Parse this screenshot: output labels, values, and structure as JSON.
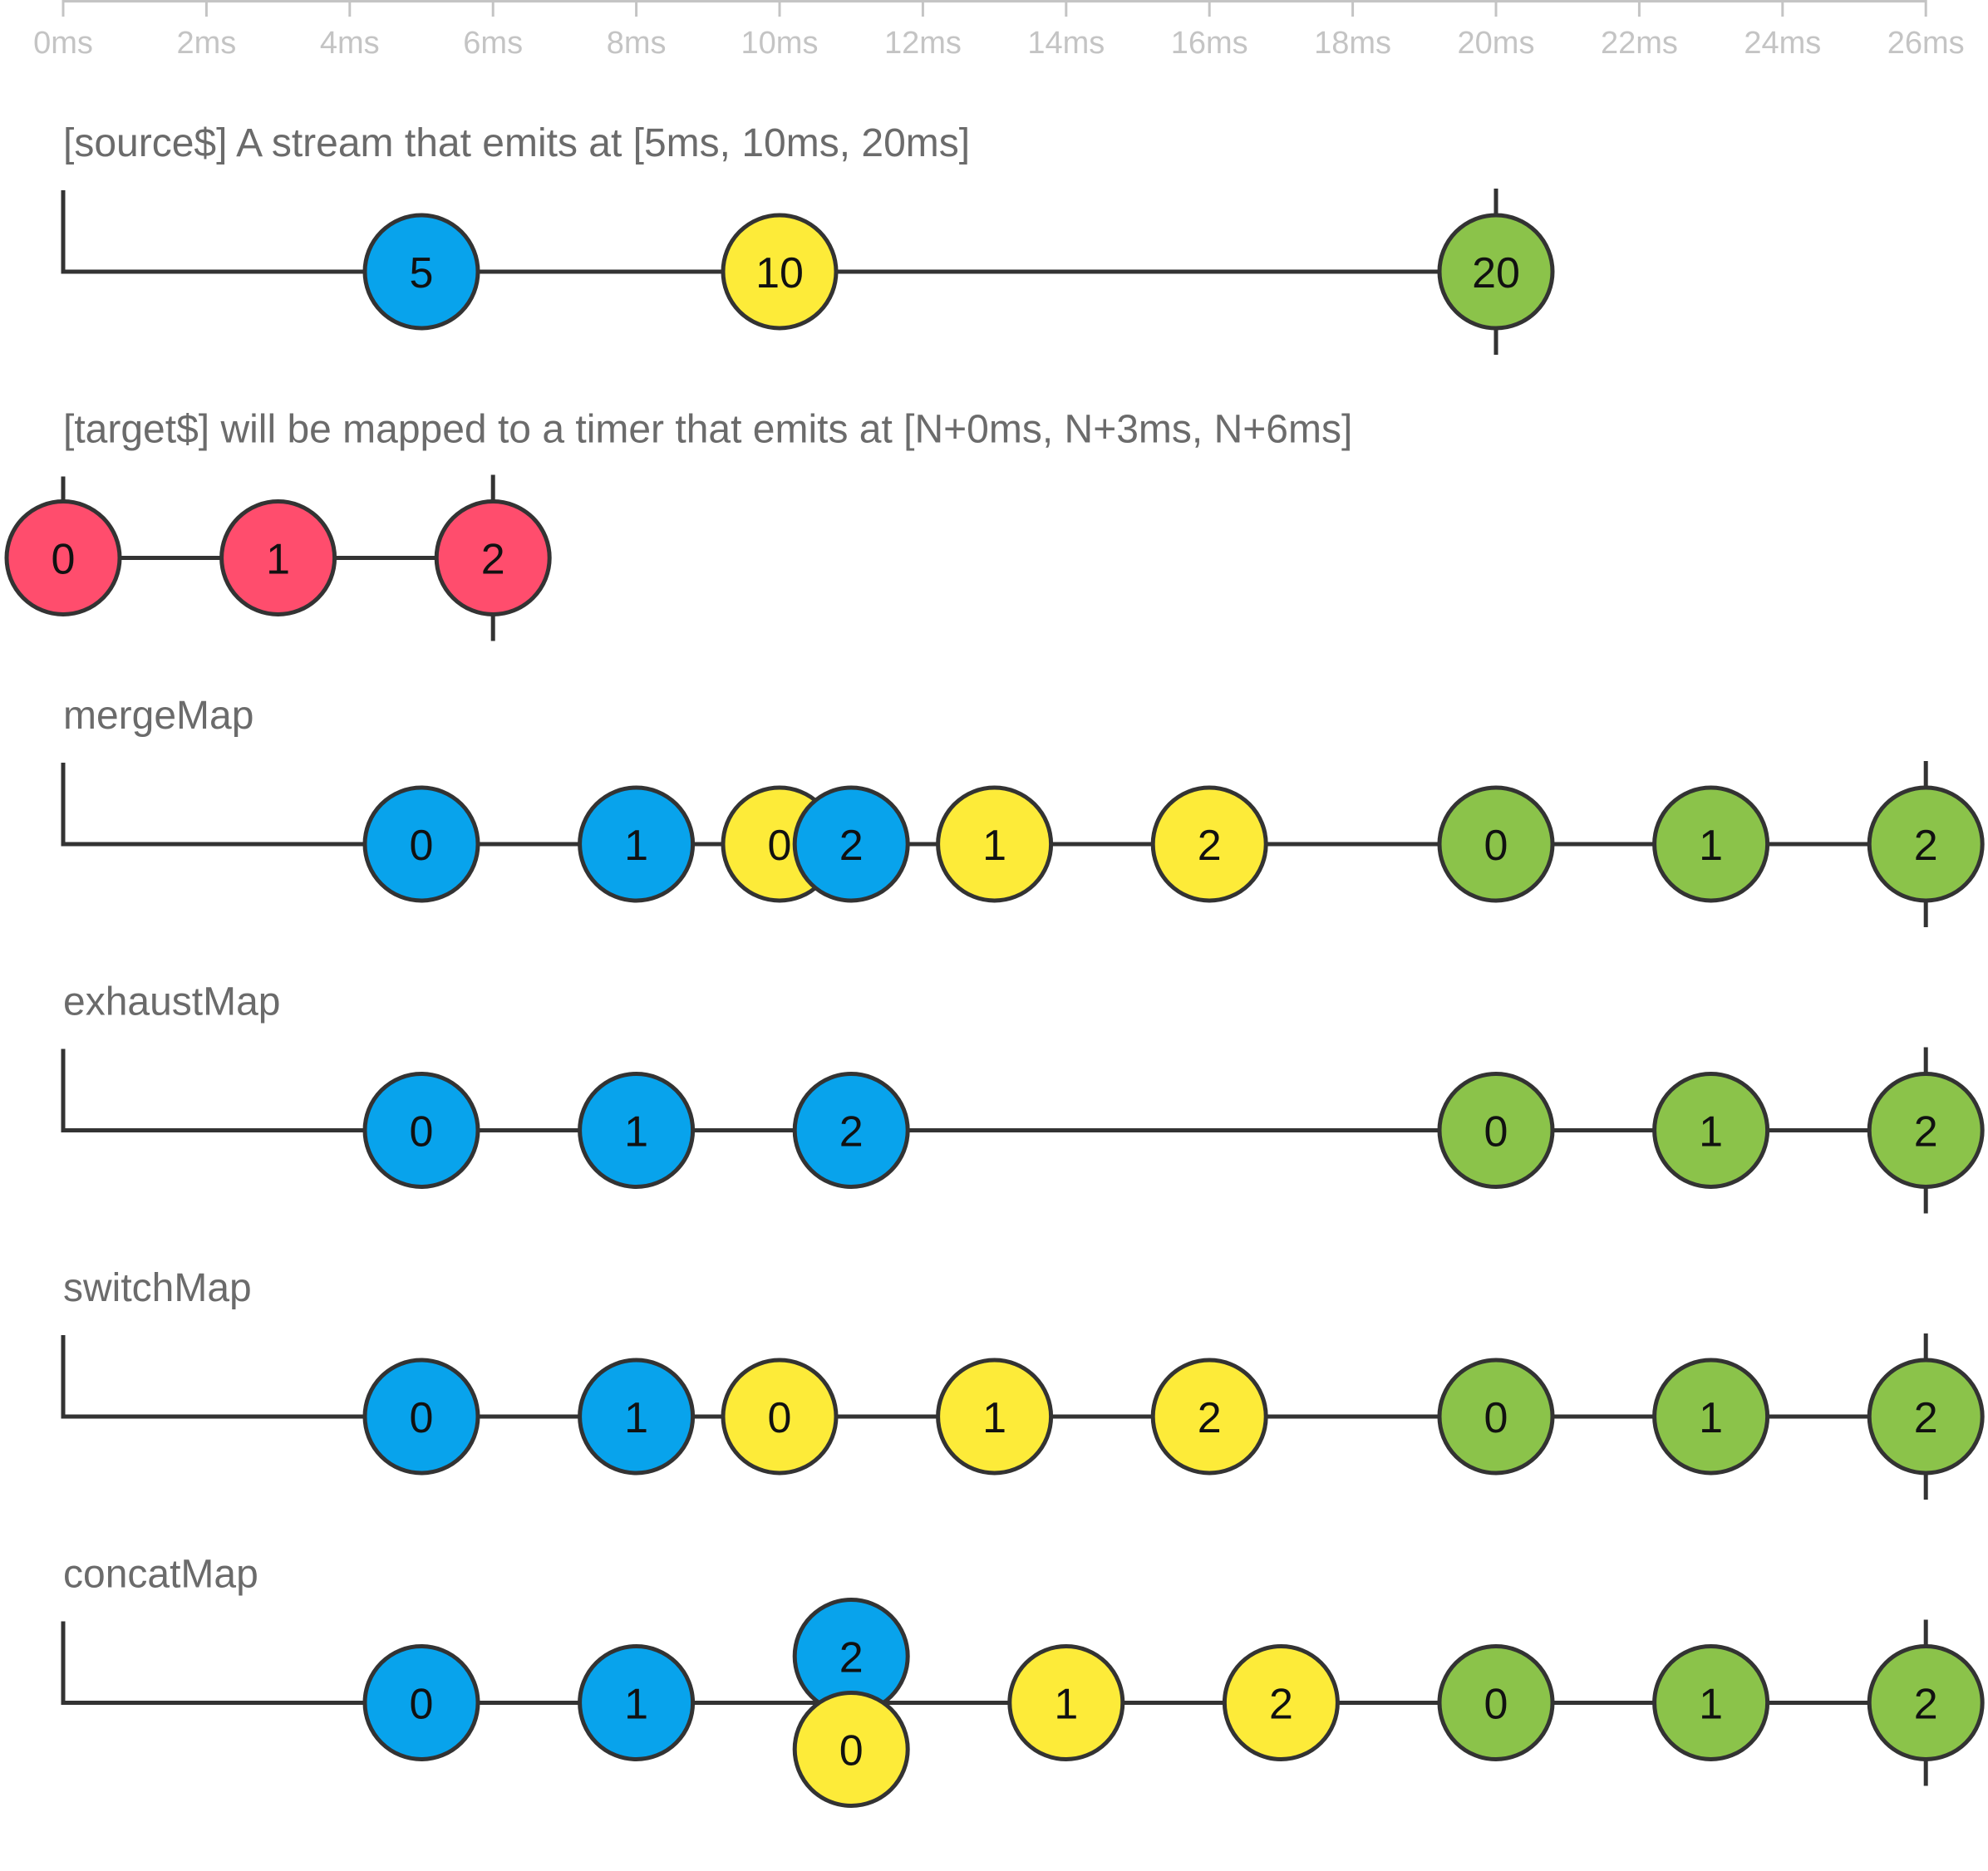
{
  "colors": {
    "blue": "#08A3EC",
    "yellow": "#FDEB39",
    "green": "#8BC34A",
    "red": "#FF4D6D",
    "line": "#333333",
    "axis": "#c4c4c4",
    "title": "#6b6b6b"
  },
  "axis": {
    "unit": "ms",
    "ticks": [
      {
        "t": 0,
        "label": "0ms"
      },
      {
        "t": 2,
        "label": "2ms"
      },
      {
        "t": 4,
        "label": "4ms"
      },
      {
        "t": 6,
        "label": "6ms"
      },
      {
        "t": 8,
        "label": "8ms"
      },
      {
        "t": 10,
        "label": "10ms"
      },
      {
        "t": 12,
        "label": "12ms"
      },
      {
        "t": 14,
        "label": "14ms"
      },
      {
        "t": 16,
        "label": "16ms"
      },
      {
        "t": 18,
        "label": "18ms"
      },
      {
        "t": 20,
        "label": "20ms"
      },
      {
        "t": 22,
        "label": "22ms"
      },
      {
        "t": 24,
        "label": "24ms"
      },
      {
        "t": 26,
        "label": "26ms"
      }
    ]
  },
  "streams": [
    {
      "id": "source",
      "title": "[source$] A stream that emits at [5ms, 10ms, 20ms]",
      "start": 0,
      "complete": 20,
      "marbles": [
        {
          "t": 5,
          "label": "5",
          "color": "blue"
        },
        {
          "t": 10,
          "label": "10",
          "color": "yellow"
        },
        {
          "t": 20,
          "label": "20",
          "color": "green"
        }
      ]
    },
    {
      "id": "target",
      "title": "[target$] will be mapped to a timer that emits at [N+0ms, N+3ms, N+6ms]",
      "start": 0,
      "start_style": "tick",
      "complete": 6,
      "marbles": [
        {
          "t": 0,
          "label": "0",
          "color": "red"
        },
        {
          "t": 3,
          "label": "1",
          "color": "red"
        },
        {
          "t": 6,
          "label": "2",
          "color": "red"
        }
      ]
    },
    {
      "id": "mergeMap",
      "title": "mergeMap",
      "start": 0,
      "complete": 26,
      "marbles": [
        {
          "t": 5,
          "label": "0",
          "color": "blue"
        },
        {
          "t": 8,
          "label": "1",
          "color": "blue"
        },
        {
          "t": 10,
          "label": "0",
          "color": "yellow"
        },
        {
          "t": 11,
          "label": "2",
          "color": "blue"
        },
        {
          "t": 13,
          "label": "1",
          "color": "yellow"
        },
        {
          "t": 16,
          "label": "2",
          "color": "yellow"
        },
        {
          "t": 20,
          "label": "0",
          "color": "green"
        },
        {
          "t": 23,
          "label": "1",
          "color": "green"
        },
        {
          "t": 26,
          "label": "2",
          "color": "green"
        }
      ]
    },
    {
      "id": "exhaustMap",
      "title": "exhaustMap",
      "start": 0,
      "complete": 26,
      "marbles": [
        {
          "t": 5,
          "label": "0",
          "color": "blue"
        },
        {
          "t": 8,
          "label": "1",
          "color": "blue"
        },
        {
          "t": 11,
          "label": "2",
          "color": "blue"
        },
        {
          "t": 20,
          "label": "0",
          "color": "green"
        },
        {
          "t": 23,
          "label": "1",
          "color": "green"
        },
        {
          "t": 26,
          "label": "2",
          "color": "green"
        }
      ]
    },
    {
      "id": "switchMap",
      "title": "switchMap",
      "start": 0,
      "complete": 26,
      "marbles": [
        {
          "t": 5,
          "label": "0",
          "color": "blue"
        },
        {
          "t": 8,
          "label": "1",
          "color": "blue"
        },
        {
          "t": 10,
          "label": "0",
          "color": "yellow"
        },
        {
          "t": 13,
          "label": "1",
          "color": "yellow"
        },
        {
          "t": 16,
          "label": "2",
          "color": "yellow"
        },
        {
          "t": 20,
          "label": "0",
          "color": "green"
        },
        {
          "t": 23,
          "label": "1",
          "color": "green"
        },
        {
          "t": 26,
          "label": "2",
          "color": "green"
        }
      ]
    },
    {
      "id": "concatMap",
      "title": "concatMap",
      "start": 0,
      "complete": 26,
      "marbles": [
        {
          "t": 5,
          "label": "0",
          "color": "blue"
        },
        {
          "t": 8,
          "label": "1",
          "color": "blue"
        },
        {
          "t": 11,
          "label": "2",
          "color": "blue",
          "stack": "above"
        },
        {
          "t": 11,
          "label": "0",
          "color": "yellow",
          "stack": "below"
        },
        {
          "t": 14,
          "label": "1",
          "color": "yellow"
        },
        {
          "t": 17,
          "label": "2",
          "color": "yellow"
        },
        {
          "t": 20,
          "label": "0",
          "color": "green"
        },
        {
          "t": 23,
          "label": "1",
          "color": "green"
        },
        {
          "t": 26,
          "label": "2",
          "color": "green"
        }
      ]
    }
  ]
}
